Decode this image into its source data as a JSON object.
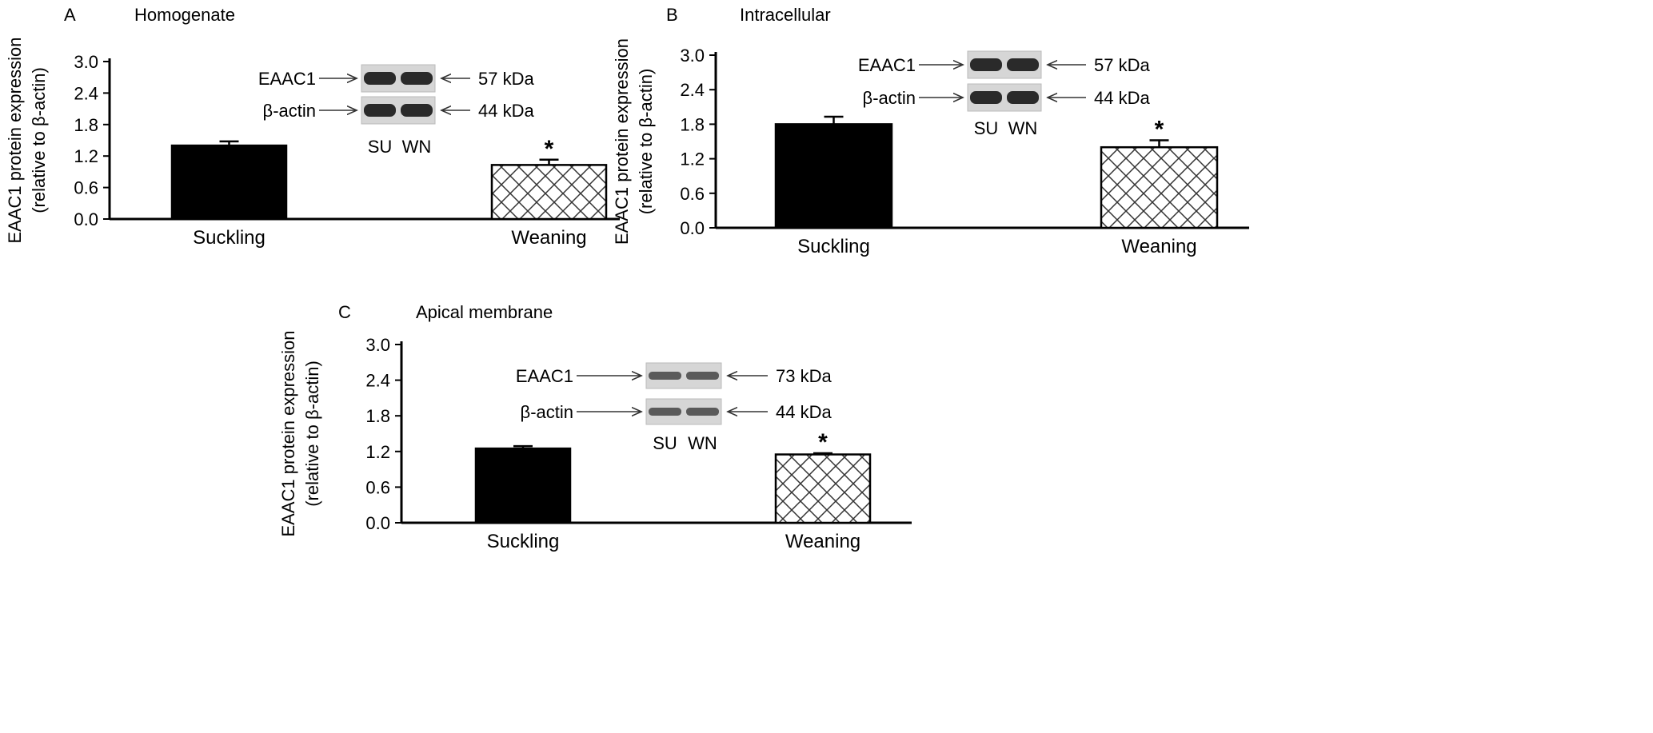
{
  "figure": {
    "ylabel_line1": "EAAC1 protein expression",
    "ylabel_line2": "(relative to β-actin)",
    "blot_labels": {
      "protein": "EAAC1",
      "control": "β-actin",
      "lane1": "SU",
      "lane2": "WN"
    },
    "significance_marker": "*"
  },
  "chart_data": [
    {
      "type": "bar",
      "panel_letter": "A",
      "title": "Homogenate",
      "categories": [
        "Suckling",
        "Weaning"
      ],
      "values": [
        1.4,
        1.03
      ],
      "errors": [
        0.08,
        0.1
      ],
      "significant": [
        false,
        true
      ],
      "ylim": [
        0,
        3.0
      ],
      "yticks": [
        "0.0",
        "0.6",
        "1.2",
        "1.8",
        "2.4",
        "3.0"
      ],
      "ylabel": "EAAC1 protein expression (relative to β-actin)",
      "bar_colors": [
        "#000000",
        "hatched"
      ],
      "blot": {
        "protein_kda": "57 kDa",
        "control_kda": "44 kDa"
      }
    },
    {
      "type": "bar",
      "panel_letter": "B",
      "title": "Intracellular",
      "categories": [
        "Suckling",
        "Weaning"
      ],
      "values": [
        1.8,
        1.4
      ],
      "errors": [
        0.13,
        0.12
      ],
      "significant": [
        false,
        true
      ],
      "ylim": [
        0,
        3.0
      ],
      "yticks": [
        "0.0",
        "0.6",
        "1.2",
        "1.8",
        "2.4",
        "3.0"
      ],
      "ylabel": "EAAC1 protein expression (relative to β-actin)",
      "bar_colors": [
        "#000000",
        "hatched"
      ],
      "blot": {
        "protein_kda": "57 kDa",
        "control_kda": "44 kDa"
      }
    },
    {
      "type": "bar",
      "panel_letter": "C",
      "title": "Apical membrane",
      "categories": [
        "Suckling",
        "Weaning"
      ],
      "values": [
        1.25,
        1.15
      ],
      "errors": [
        0.04,
        0.02
      ],
      "significant": [
        false,
        true
      ],
      "ylim": [
        0,
        3.0
      ],
      "yticks": [
        "0.0",
        "0.6",
        "1.2",
        "1.8",
        "2.4",
        "3.0"
      ],
      "ylabel": "EAAC1 protein expression (relative to β-actin)",
      "bar_colors": [
        "#000000",
        "hatched"
      ],
      "blot": {
        "protein_kda": "73 kDa",
        "control_kda": "44 kDa"
      }
    }
  ]
}
